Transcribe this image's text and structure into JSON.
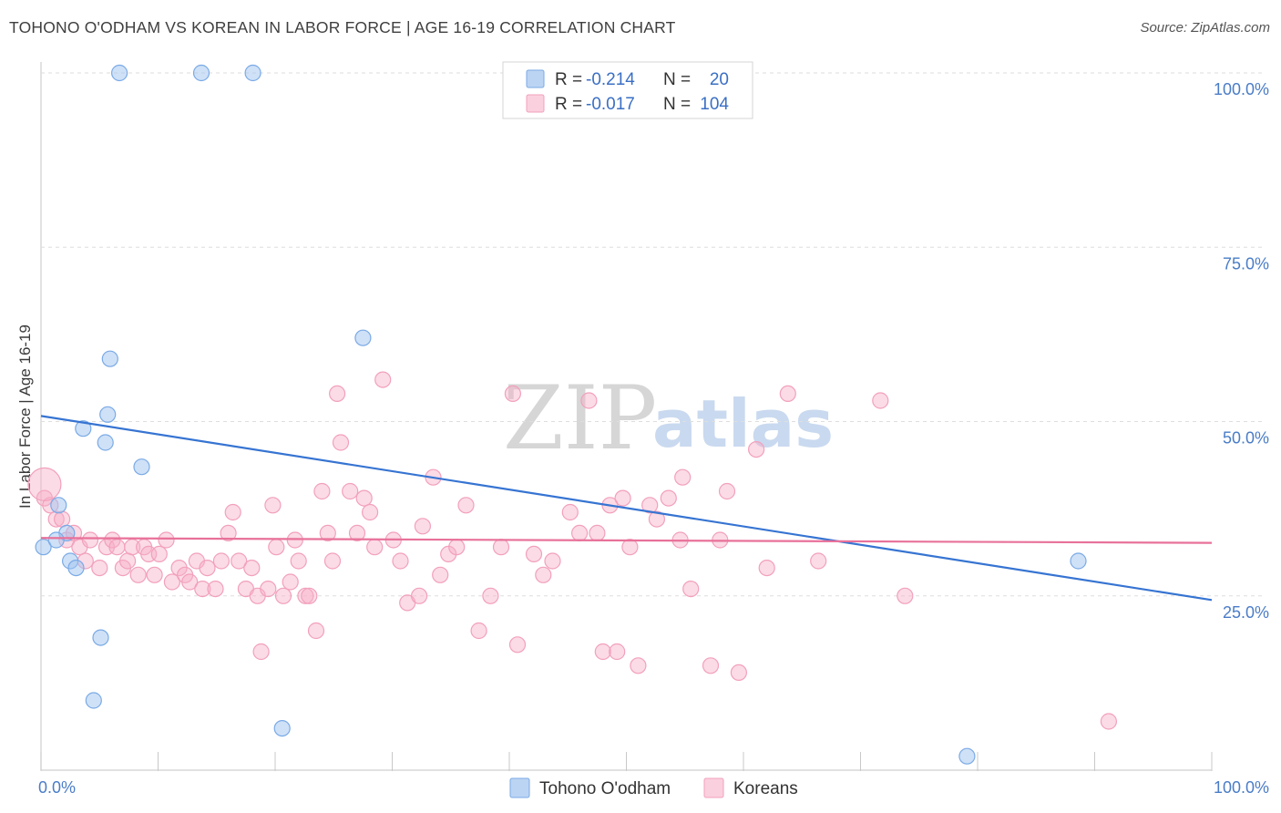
{
  "title": "TOHONO O'ODHAM VS KOREAN IN LABOR FORCE | AGE 16-19 CORRELATION CHART",
  "source": "Source: ZipAtlas.com",
  "watermark": {
    "zip": "ZIP",
    "atlas": "atlas"
  },
  "legend": {
    "rows": [
      {
        "r_label": "R = ",
        "r_value": "-0.214",
        "n_label": "N = ",
        "n_value": "20"
      },
      {
        "r_label": "R = ",
        "r_value": "-0.017",
        "n_label": "N = ",
        "n_value": "104"
      }
    ]
  },
  "chart_data": {
    "type": "scatter",
    "title": "TOHONO O'ODHAM VS KOREAN IN LABOR FORCE | AGE 16-19 CORRELATION CHART",
    "xlabel": "",
    "ylabel": "In Labor Force | Age 16-19",
    "xlim": [
      0,
      100
    ],
    "ylim": [
      0,
      100
    ],
    "x_tick_labels": [
      "0.0%",
      "100.0%"
    ],
    "y_ticks": [
      {
        "value": 25,
        "label": "25.0%"
      },
      {
        "value": 50,
        "label": "50.0%"
      },
      {
        "value": 75,
        "label": "75.0%"
      },
      {
        "value": 100,
        "label": "100.0%"
      }
    ],
    "colors": {
      "tohono": "#7aaae6",
      "korean": "#f2a0bc",
      "tohono_line": "#3674d2",
      "korean_line": "#e8719a"
    },
    "series": [
      {
        "name": "Tohono O'odham",
        "points": [
          [
            0.2,
            32
          ],
          [
            1.5,
            38
          ],
          [
            2.2,
            34
          ],
          [
            2.5,
            30
          ],
          [
            3.0,
            29
          ],
          [
            3.6,
            49
          ],
          [
            5.1,
            19
          ],
          [
            4.5,
            10
          ],
          [
            5.5,
            47
          ],
          [
            5.7,
            51
          ],
          [
            5.9,
            59
          ],
          [
            8.6,
            43.5
          ],
          [
            6.7,
            100
          ],
          [
            13.7,
            100
          ],
          [
            18.1,
            100
          ],
          [
            20.6,
            6
          ],
          [
            27.5,
            62
          ],
          [
            79.1,
            2
          ],
          [
            88.6,
            30
          ],
          [
            1.3,
            33
          ]
        ],
        "trend": {
          "x0": 0,
          "y0": 50.8,
          "x1": 100,
          "y1": 24.4
        }
      },
      {
        "name": "Koreans",
        "points": [
          [
            0.3,
            39
          ],
          [
            0.8,
            38
          ],
          [
            1.3,
            36
          ],
          [
            1.8,
            36
          ],
          [
            2.2,
            33
          ],
          [
            2.8,
            34
          ],
          [
            3.3,
            32
          ],
          [
            3.8,
            30
          ],
          [
            4.2,
            33
          ],
          [
            5.0,
            29
          ],
          [
            5.6,
            32
          ],
          [
            6.1,
            33
          ],
          [
            6.5,
            32
          ],
          [
            7.0,
            29
          ],
          [
            7.4,
            30
          ],
          [
            7.8,
            32
          ],
          [
            8.3,
            28
          ],
          [
            8.8,
            32
          ],
          [
            9.2,
            31
          ],
          [
            9.7,
            28
          ],
          [
            10.1,
            31
          ],
          [
            10.7,
            33
          ],
          [
            11.2,
            27
          ],
          [
            11.8,
            29
          ],
          [
            12.3,
            28
          ],
          [
            12.7,
            27
          ],
          [
            13.3,
            30
          ],
          [
            13.8,
            26
          ],
          [
            14.2,
            29
          ],
          [
            14.9,
            26
          ],
          [
            15.4,
            30
          ],
          [
            16.0,
            34
          ],
          [
            16.4,
            37
          ],
          [
            16.9,
            30
          ],
          [
            17.5,
            26
          ],
          [
            18.0,
            29
          ],
          [
            18.5,
            25
          ],
          [
            18.8,
            17
          ],
          [
            19.4,
            26
          ],
          [
            19.8,
            38
          ],
          [
            20.1,
            32
          ],
          [
            20.7,
            25
          ],
          [
            21.3,
            27
          ],
          [
            21.7,
            33
          ],
          [
            22.0,
            30
          ],
          [
            22.6,
            25
          ],
          [
            22.9,
            25
          ],
          [
            23.5,
            20
          ],
          [
            24.0,
            40
          ],
          [
            24.5,
            34
          ],
          [
            24.9,
            30
          ],
          [
            25.3,
            54
          ],
          [
            25.6,
            47
          ],
          [
            26.4,
            40
          ],
          [
            27.0,
            34
          ],
          [
            27.6,
            39
          ],
          [
            28.1,
            37
          ],
          [
            28.5,
            32
          ],
          [
            29.2,
            56
          ],
          [
            30.1,
            33
          ],
          [
            30.7,
            30
          ],
          [
            31.3,
            24
          ],
          [
            32.3,
            25
          ],
          [
            32.6,
            35
          ],
          [
            33.5,
            42
          ],
          [
            34.1,
            28
          ],
          [
            34.8,
            31
          ],
          [
            35.5,
            32
          ],
          [
            36.3,
            38
          ],
          [
            37.4,
            20
          ],
          [
            38.4,
            25
          ],
          [
            39.3,
            32
          ],
          [
            40.3,
            54
          ],
          [
            40.7,
            18
          ],
          [
            42.1,
            31
          ],
          [
            42.9,
            28
          ],
          [
            43.7,
            30
          ],
          [
            45.2,
            37
          ],
          [
            46.0,
            34
          ],
          [
            46.8,
            53
          ],
          [
            47.5,
            34
          ],
          [
            48.0,
            17
          ],
          [
            48.6,
            38
          ],
          [
            49.2,
            17
          ],
          [
            49.7,
            39
          ],
          [
            50.3,
            32
          ],
          [
            51.0,
            15
          ],
          [
            52.0,
            38
          ],
          [
            52.6,
            36
          ],
          [
            53.6,
            39
          ],
          [
            54.6,
            33
          ],
          [
            54.8,
            42
          ],
          [
            55.5,
            26
          ],
          [
            57.2,
            15
          ],
          [
            58.0,
            33
          ],
          [
            58.6,
            40
          ],
          [
            59.6,
            14
          ],
          [
            61.1,
            46
          ],
          [
            62.0,
            29
          ],
          [
            63.8,
            54
          ],
          [
            66.4,
            30
          ],
          [
            71.7,
            53
          ],
          [
            73.8,
            25
          ],
          [
            91.2,
            7
          ]
        ],
        "trend": {
          "x0": 0,
          "y0": 33.3,
          "x1": 100,
          "y1": 32.6
        }
      }
    ]
  }
}
